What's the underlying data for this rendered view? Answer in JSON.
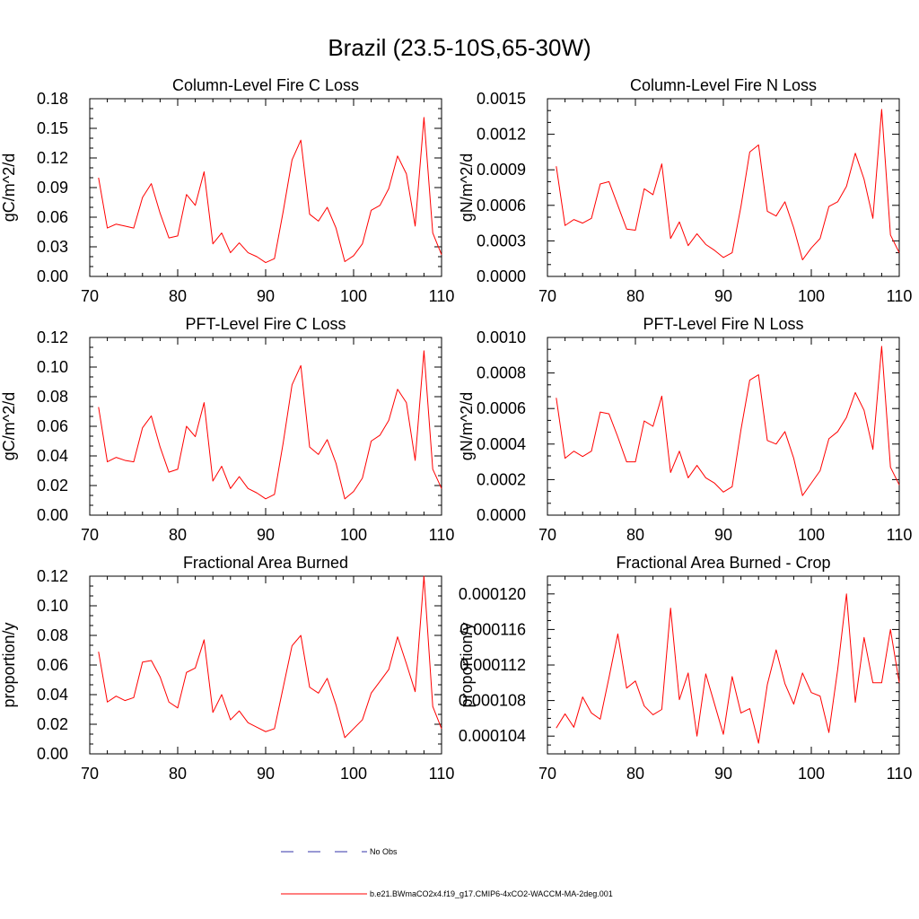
{
  "figure": {
    "title": "Brazil (23.5-10S,65-30W)"
  },
  "legend": {
    "entries": [
      {
        "label": "No Obs",
        "color": "#3333aa",
        "style": "dashed"
      },
      {
        "label": "b.e21.BWmaCO2x4.f19_g17.CMIP6-4xCO2-WACCM-MA-2deg.001",
        "color": "#ff0000",
        "style": "solid"
      }
    ]
  },
  "chart_data": [
    {
      "type": "line",
      "title": "Column-Level Fire C Loss",
      "ylabel": "gC/m^2/d",
      "xlim": [
        70,
        110
      ],
      "ylim": [
        0,
        0.18
      ],
      "xticks": [
        70,
        80,
        90,
        100,
        110
      ],
      "yticks": [
        "0.00",
        "0.03",
        "0.06",
        "0.09",
        "0.12",
        "0.15",
        "0.18"
      ],
      "series": [
        {
          "color": "#ff0000",
          "x": [
            71,
            72,
            73,
            74,
            75,
            76,
            77,
            78,
            79,
            80,
            81,
            82,
            83,
            84,
            85,
            86,
            87,
            88,
            89,
            90,
            91,
            92,
            93,
            94,
            95,
            96,
            97,
            98,
            99,
            100,
            101,
            102,
            103,
            104,
            105,
            106,
            107,
            108,
            109,
            110
          ],
          "y": [
            0.1,
            0.049,
            0.053,
            0.051,
            0.049,
            0.08,
            0.094,
            0.064,
            0.039,
            0.041,
            0.083,
            0.072,
            0.106,
            0.033,
            0.044,
            0.024,
            0.034,
            0.024,
            0.02,
            0.014,
            0.018,
            0.066,
            0.118,
            0.138,
            0.063,
            0.056,
            0.07,
            0.049,
            0.015,
            0.021,
            0.033,
            0.067,
            0.072,
            0.089,
            0.122,
            0.104,
            0.051,
            0.161,
            0.044,
            0.022
          ]
        }
      ]
    },
    {
      "type": "line",
      "title": "Column-Level Fire N Loss",
      "ylabel": "gN/m^2/d",
      "xlim": [
        70,
        110
      ],
      "ylim": [
        0,
        0.0015
      ],
      "xticks": [
        70,
        80,
        90,
        100,
        110
      ],
      "yticks": [
        "0.0000",
        "0.0003",
        "0.0006",
        "0.0009",
        "0.0012",
        "0.0015"
      ],
      "series": [
        {
          "color": "#ff0000",
          "x": [
            71,
            72,
            73,
            74,
            75,
            76,
            77,
            78,
            79,
            80,
            81,
            82,
            83,
            84,
            85,
            86,
            87,
            88,
            89,
            90,
            91,
            92,
            93,
            94,
            95,
            96,
            97,
            98,
            99,
            100,
            101,
            102,
            103,
            104,
            105,
            106,
            107,
            108,
            109,
            110
          ],
          "y": [
            0.00093,
            0.00043,
            0.00048,
            0.00045,
            0.00049,
            0.00078,
            0.0008,
            0.0006,
            0.0004,
            0.00039,
            0.00074,
            0.00069,
            0.00095,
            0.00032,
            0.00046,
            0.00026,
            0.00036,
            0.00027,
            0.00022,
            0.00016,
            0.0002,
            0.00059,
            0.00105,
            0.00111,
            0.00055,
            0.00051,
            0.00063,
            0.00041,
            0.00014,
            0.00024,
            0.00032,
            0.00059,
            0.00063,
            0.00076,
            0.00104,
            0.00082,
            0.00049,
            0.00141,
            0.00035,
            0.0002
          ]
        }
      ]
    },
    {
      "type": "line",
      "title": "PFT-Level Fire C Loss",
      "ylabel": "gC/m^2/d",
      "xlim": [
        70,
        110
      ],
      "ylim": [
        0,
        0.12
      ],
      "xticks": [
        70,
        80,
        90,
        100,
        110
      ],
      "yticks": [
        "0.00",
        "0.02",
        "0.04",
        "0.06",
        "0.08",
        "0.10",
        "0.12"
      ],
      "series": [
        {
          "color": "#ff0000",
          "x": [
            71,
            72,
            73,
            74,
            75,
            76,
            77,
            78,
            79,
            80,
            81,
            82,
            83,
            84,
            85,
            86,
            87,
            88,
            89,
            90,
            91,
            92,
            93,
            94,
            95,
            96,
            97,
            98,
            99,
            100,
            101,
            102,
            103,
            104,
            105,
            106,
            107,
            108,
            109,
            110
          ],
          "y": [
            0.073,
            0.036,
            0.039,
            0.037,
            0.036,
            0.059,
            0.067,
            0.046,
            0.029,
            0.031,
            0.06,
            0.053,
            0.076,
            0.023,
            0.033,
            0.018,
            0.026,
            0.018,
            0.015,
            0.011,
            0.014,
            0.049,
            0.088,
            0.101,
            0.046,
            0.041,
            0.051,
            0.035,
            0.011,
            0.016,
            0.025,
            0.05,
            0.054,
            0.064,
            0.085,
            0.076,
            0.037,
            0.111,
            0.031,
            0.018
          ]
        }
      ]
    },
    {
      "type": "line",
      "title": "PFT-Level Fire N Loss",
      "ylabel": "gN/m^2/d",
      "xlim": [
        70,
        110
      ],
      "ylim": [
        0,
        0.001
      ],
      "xticks": [
        70,
        80,
        90,
        100,
        110
      ],
      "yticks": [
        "0.0000",
        "0.0002",
        "0.0004",
        "0.0006",
        "0.0008",
        "0.0010"
      ],
      "series": [
        {
          "color": "#ff0000",
          "x": [
            71,
            72,
            73,
            74,
            75,
            76,
            77,
            78,
            79,
            80,
            81,
            82,
            83,
            84,
            85,
            86,
            87,
            88,
            89,
            90,
            91,
            92,
            93,
            94,
            95,
            96,
            97,
            98,
            99,
            100,
            101,
            102,
            103,
            104,
            105,
            106,
            107,
            108,
            109,
            110
          ],
          "y": [
            0.00066,
            0.00032,
            0.00036,
            0.00033,
            0.00036,
            0.00058,
            0.00057,
            0.00044,
            0.0003,
            0.0003,
            0.00053,
            0.0005,
            0.00067,
            0.00024,
            0.00036,
            0.00021,
            0.00028,
            0.00021,
            0.00018,
            0.00013,
            0.00016,
            0.00048,
            0.00076,
            0.00079,
            0.00042,
            0.0004,
            0.00047,
            0.00032,
            0.00011,
            0.00018,
            0.00025,
            0.00043,
            0.00047,
            0.00055,
            0.00069,
            0.00059,
            0.00037,
            0.00095,
            0.00027,
            0.00017
          ]
        }
      ]
    },
    {
      "type": "line",
      "title": "Fractional Area Burned",
      "ylabel": "proportion/y",
      "xlim": [
        70,
        110
      ],
      "ylim": [
        0,
        0.12
      ],
      "xticks": [
        70,
        80,
        90,
        100,
        110
      ],
      "yticks": [
        "0.00",
        "0.02",
        "0.04",
        "0.06",
        "0.08",
        "0.10",
        "0.12"
      ],
      "series": [
        {
          "color": "#ff0000",
          "x": [
            71,
            72,
            73,
            74,
            75,
            76,
            77,
            78,
            79,
            80,
            81,
            82,
            83,
            84,
            85,
            86,
            87,
            88,
            89,
            90,
            91,
            92,
            93,
            94,
            95,
            96,
            97,
            98,
            99,
            100,
            101,
            102,
            103,
            104,
            105,
            106,
            107,
            108,
            109,
            110
          ],
          "y": [
            0.069,
            0.035,
            0.039,
            0.036,
            0.038,
            0.062,
            0.063,
            0.052,
            0.035,
            0.031,
            0.055,
            0.058,
            0.077,
            0.028,
            0.04,
            0.023,
            0.029,
            0.021,
            0.018,
            0.015,
            0.017,
            0.045,
            0.073,
            0.08,
            0.045,
            0.041,
            0.051,
            0.033,
            0.011,
            0.017,
            0.023,
            0.041,
            0.049,
            0.057,
            0.079,
            0.061,
            0.042,
            0.12,
            0.032,
            0.017
          ]
        }
      ]
    },
    {
      "type": "line",
      "title": "Fractional Area Burned - Crop",
      "ylabel": "proportion/y",
      "xlim": [
        70,
        110
      ],
      "ylim": [
        0.000102,
        0.000122
      ],
      "xticks": [
        70,
        80,
        90,
        100,
        110
      ],
      "yticks": [
        "0.000104",
        "0.000108",
        "0.000112",
        "0.000116",
        "0.000120"
      ],
      "series": [
        {
          "color": "#ff0000",
          "x": [
            71,
            72,
            73,
            74,
            75,
            76,
            77,
            78,
            79,
            80,
            81,
            82,
            83,
            84,
            85,
            86,
            87,
            88,
            89,
            90,
            91,
            92,
            93,
            94,
            95,
            96,
            97,
            98,
            99,
            100,
            101,
            102,
            103,
            104,
            105,
            106,
            107,
            108,
            109,
            110
          ],
          "y": [
            0.0001049,
            0.0001065,
            0.000105,
            0.0001084,
            0.0001066,
            0.0001059,
            0.0001106,
            0.0001155,
            0.0001094,
            0.0001102,
            0.0001074,
            0.0001064,
            0.000107,
            0.0001184,
            0.0001081,
            0.0001111,
            0.000104,
            0.000111,
            0.0001076,
            0.0001042,
            0.0001107,
            0.0001066,
            0.0001071,
            0.0001032,
            0.0001098,
            0.0001137,
            0.0001099,
            0.0001076,
            0.0001111,
            0.0001089,
            0.0001085,
            0.0001044,
            0.0001115,
            0.00012,
            0.0001078,
            0.0001151,
            0.00011,
            0.00011,
            0.000116,
            0.00011
          ]
        }
      ]
    }
  ]
}
